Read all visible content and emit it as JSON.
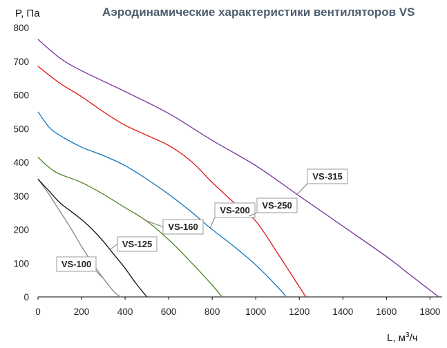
{
  "chart_data": {
    "type": "line",
    "title": "Аэродинамические характеристики вентиляторов VS",
    "ylabel": "P, Па",
    "xlabel_main": "L, м",
    "xlabel_sup": "3",
    "xlabel_tail": "/ч",
    "xlim": [
      0,
      1900
    ],
    "ylim": [
      0,
      800
    ],
    "xticks": [
      "0",
      "200",
      "400",
      "600",
      "800",
      "1000",
      "1200",
      "1400",
      "1600",
      "1800"
    ],
    "yticks": [
      "0",
      "100",
      "200",
      "300",
      "400",
      "500",
      "600",
      "700",
      "800"
    ],
    "grid": false,
    "series": [
      {
        "name": "VS-100",
        "color": "#8c8c8c",
        "x": [
          0,
          50,
          100,
          150,
          200,
          250,
          300,
          350,
          380
        ],
        "y": [
          350,
          305,
          255,
          205,
          150,
          100,
          55,
          15,
          0
        ]
      },
      {
        "name": "VS-125",
        "color": "#1a1a1a",
        "x": [
          0,
          50,
          100,
          150,
          200,
          250,
          300,
          350,
          400,
          450,
          500
        ],
        "y": [
          350,
          315,
          280,
          255,
          230,
          200,
          165,
          125,
          85,
          40,
          0
        ]
      },
      {
        "name": "VS-160",
        "color": "#5a8a2e",
        "x": [
          0,
          50,
          100,
          200,
          300,
          400,
          500,
          600,
          700,
          800,
          845
        ],
        "y": [
          415,
          385,
          365,
          340,
          305,
          265,
          225,
          170,
          105,
          35,
          0
        ]
      },
      {
        "name": "VS-200",
        "color": "#1f7fc4",
        "x": [
          0,
          50,
          100,
          200,
          300,
          400,
          500,
          600,
          700,
          800,
          900,
          1000,
          1100,
          1140
        ],
        "y": [
          550,
          505,
          480,
          445,
          420,
          390,
          350,
          305,
          255,
          200,
          150,
          95,
          30,
          0
        ]
      },
      {
        "name": "VS-250",
        "color": "#e02020",
        "x": [
          0,
          100,
          200,
          300,
          400,
          500,
          600,
          700,
          800,
          900,
          1000,
          1100,
          1200,
          1230
        ],
        "y": [
          685,
          635,
          595,
          550,
          510,
          480,
          450,
          405,
          340,
          280,
          225,
          130,
          30,
          0
        ]
      },
      {
        "name": "VS-315",
        "color": "#7b3fa0",
        "x": [
          0,
          100,
          200,
          400,
          600,
          800,
          1000,
          1200,
          1400,
          1600,
          1700,
          1800,
          1840
        ],
        "y": [
          765,
          710,
          672,
          610,
          545,
          465,
          390,
          300,
          210,
          120,
          70,
          20,
          0
        ]
      }
    ],
    "callouts": [
      {
        "label": "VS-100",
        "series": "VS-100"
      },
      {
        "label": "VS-125",
        "series": "VS-125"
      },
      {
        "label": "VS-160",
        "series": "VS-160"
      },
      {
        "label": "VS-200",
        "series": "VS-200"
      },
      {
        "label": "VS-250",
        "series": "VS-250"
      },
      {
        "label": "VS-315",
        "series": "VS-315"
      }
    ]
  }
}
